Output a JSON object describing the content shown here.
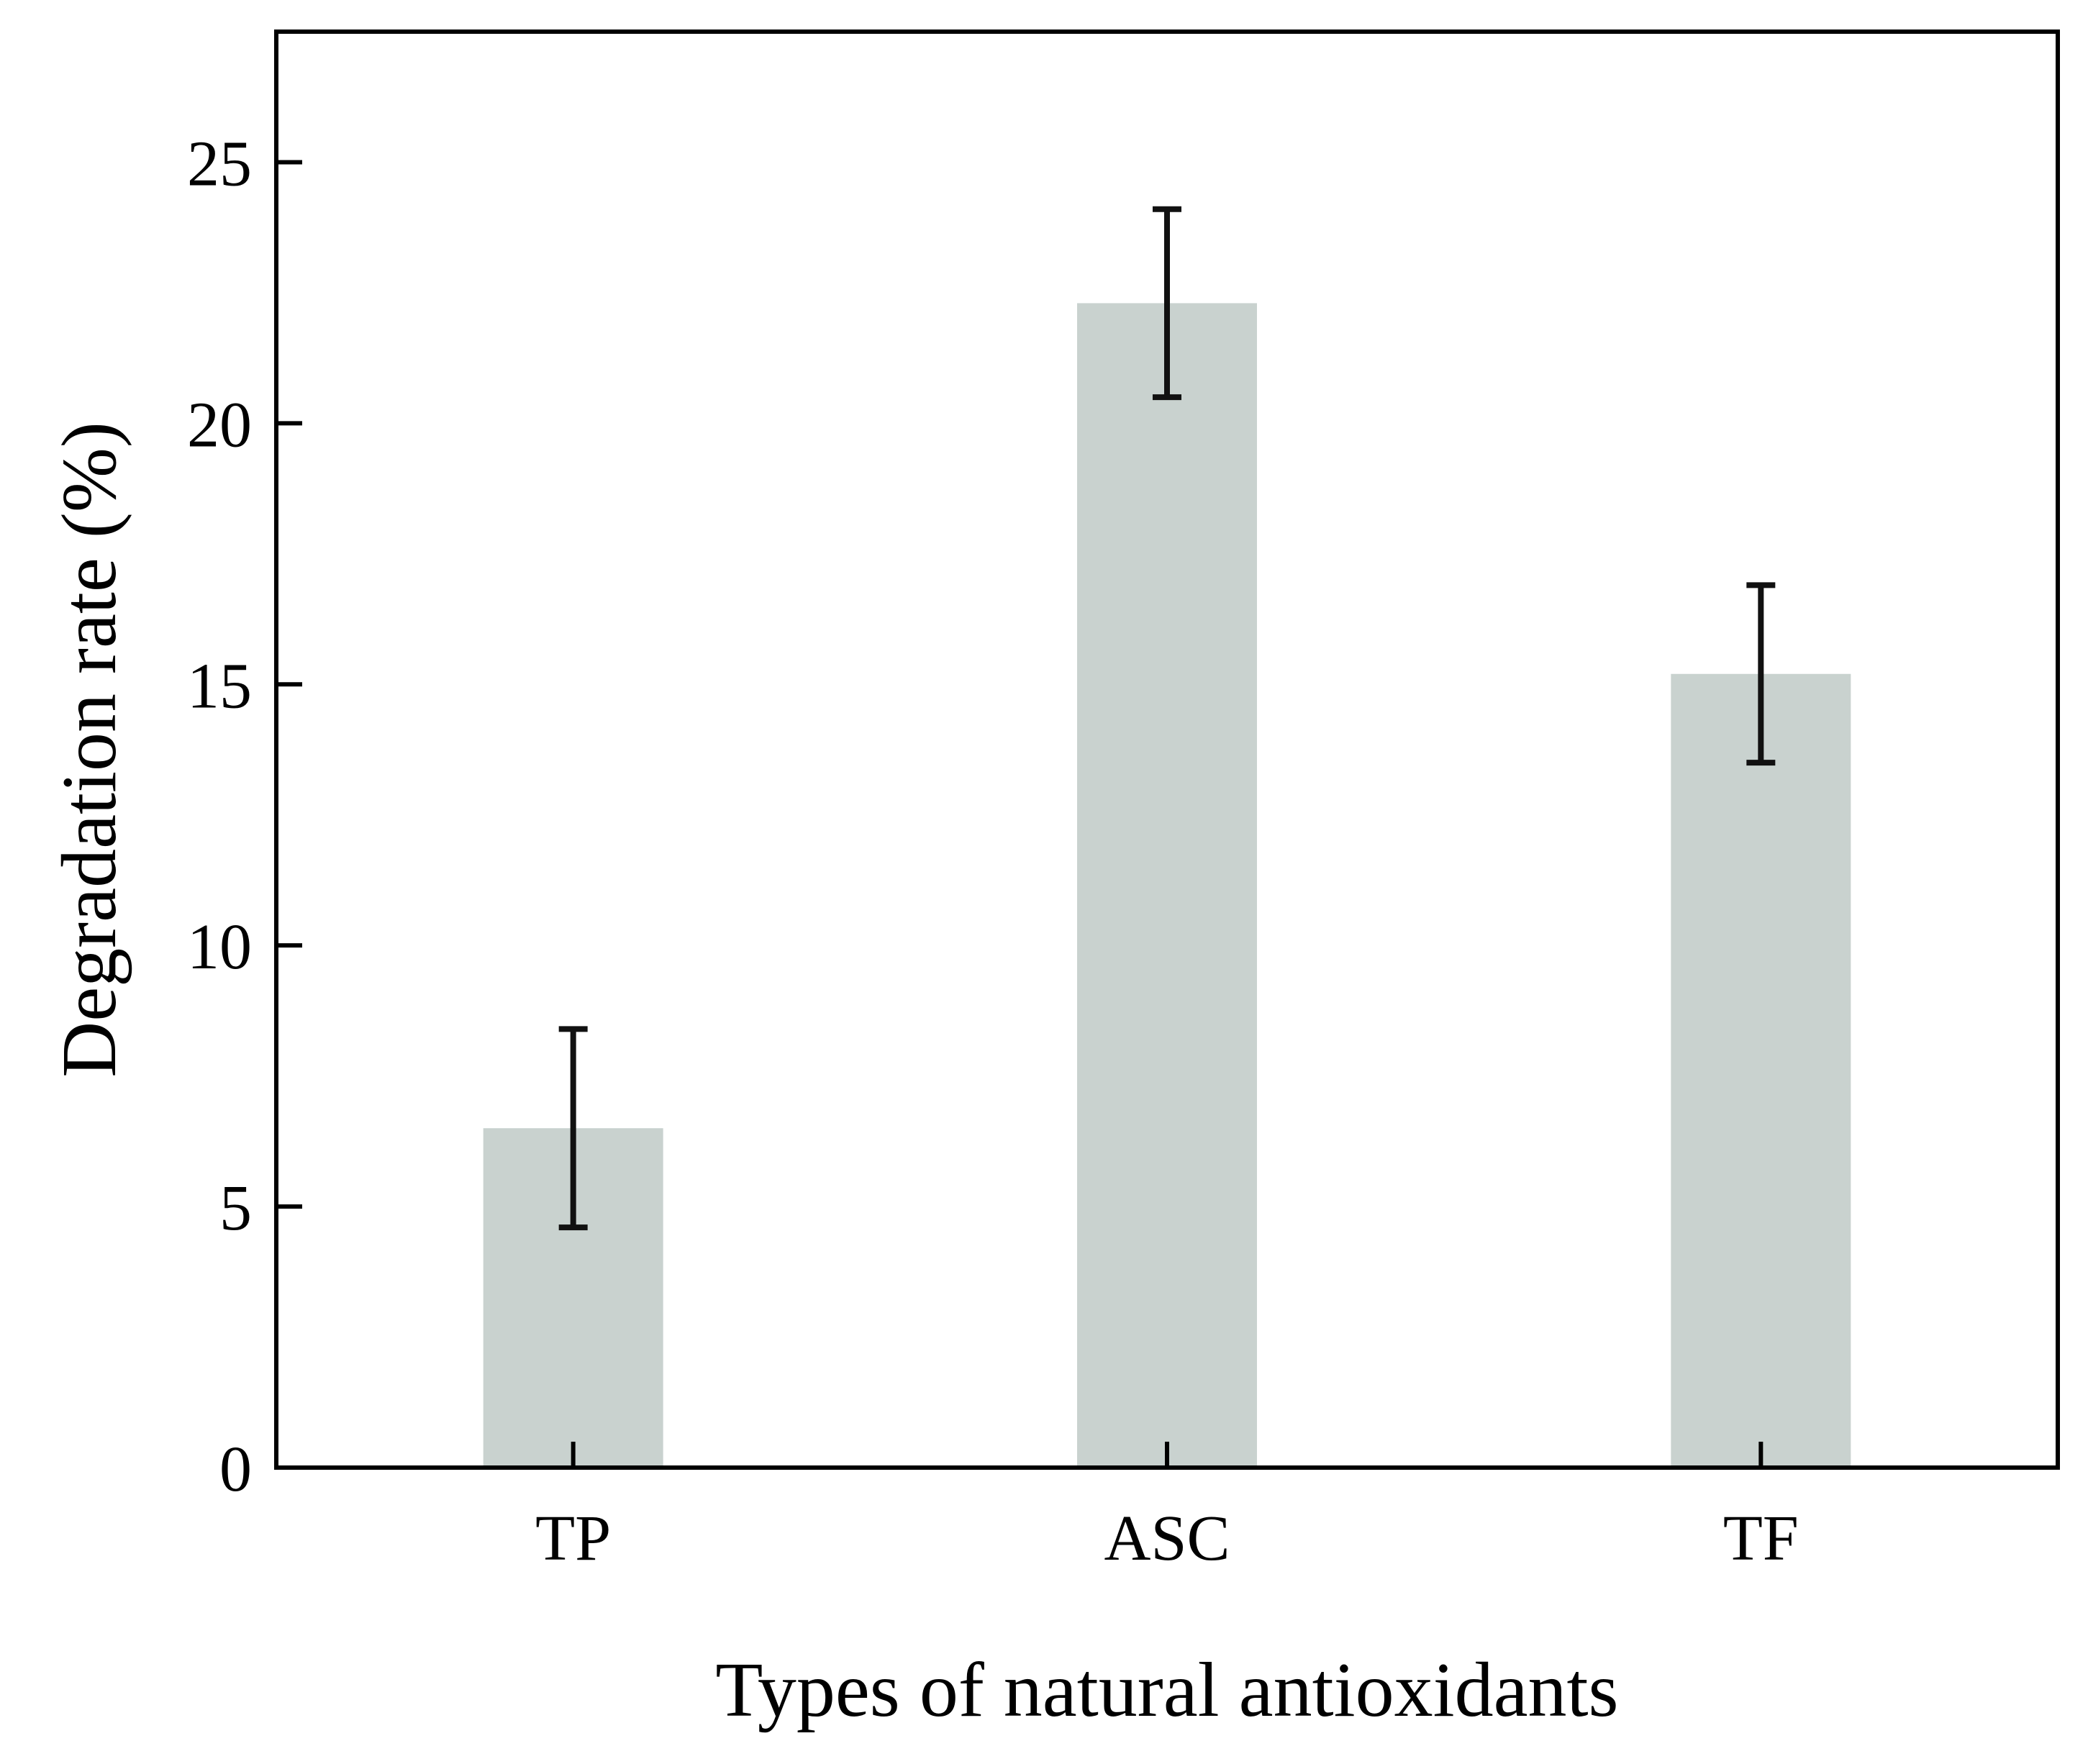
{
  "chart_data": {
    "type": "bar",
    "title": "",
    "xlabel": "Types of natural antioxidants",
    "ylabel": "Degradation rate (%)",
    "categories": [
      "TP",
      "ASC",
      "TF"
    ],
    "values": [
      6.5,
      22.3,
      15.2
    ],
    "errors": [
      1.9,
      1.8,
      1.7
    ],
    "ylim": [
      0,
      27.5
    ],
    "yticks": [
      0,
      5,
      10,
      15,
      20,
      25
    ],
    "ytick_labels": [
      "0",
      "5",
      "10",
      "15",
      "20",
      "25"
    ],
    "grid": false,
    "legend": "none",
    "colors": {
      "bar": "#c9d2cf",
      "error_bar": "#111111",
      "axis": "#000000"
    }
  }
}
